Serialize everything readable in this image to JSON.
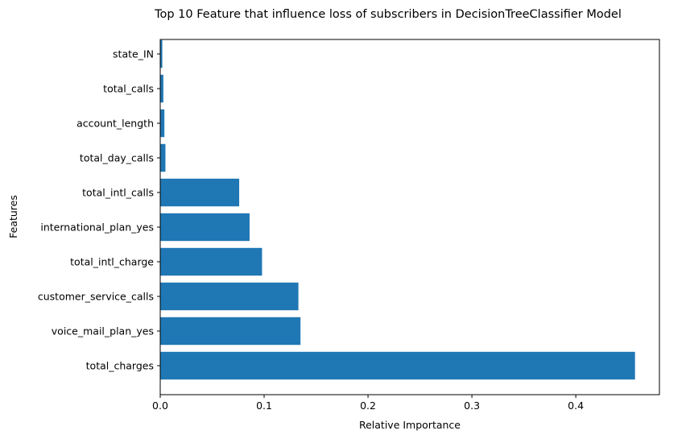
{
  "chart_data": {
    "type": "bar",
    "orientation": "horizontal",
    "title": "Top 10 Feature that influence loss of subscribers in DecisionTreeClassifier Model",
    "xlabel": "Relative Importance",
    "ylabel": "Features",
    "categories": [
      "total_charges",
      "voice_mail_plan_yes",
      "customer_service_calls",
      "total_intl_charge",
      "international_plan_yes",
      "total_intl_calls",
      "total_day_calls",
      "account_length",
      "total_calls",
      "state_IN"
    ],
    "values": [
      0.457,
      0.135,
      0.133,
      0.098,
      0.086,
      0.076,
      0.005,
      0.004,
      0.003,
      0.002
    ],
    "xlim": [
      0,
      0.4805
    ],
    "xticks": [
      0.0,
      0.1,
      0.2,
      0.3,
      0.4
    ],
    "xtick_labels": [
      "0.0",
      "0.1",
      "0.2",
      "0.3",
      "0.4"
    ],
    "bar_color": "#1f77b4",
    "grid": false,
    "legend": "none"
  }
}
